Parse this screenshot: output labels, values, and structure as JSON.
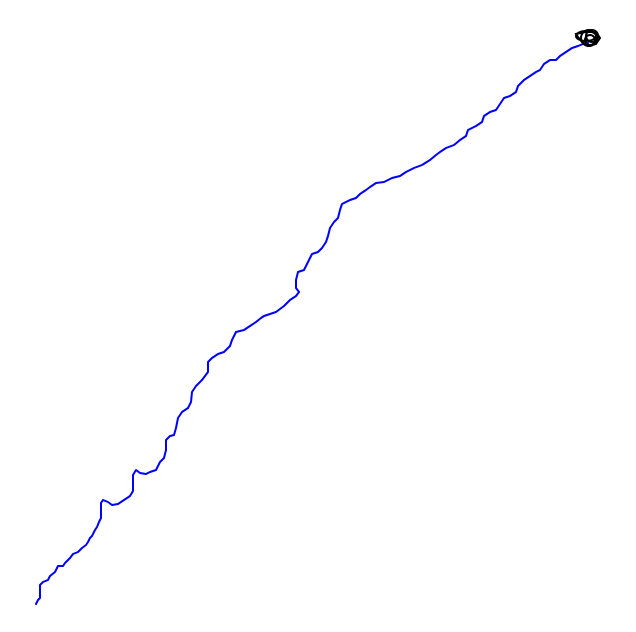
{
  "trajectory": {
    "path_color": "#0000ff",
    "end_marker_color": "#000000"
  }
}
